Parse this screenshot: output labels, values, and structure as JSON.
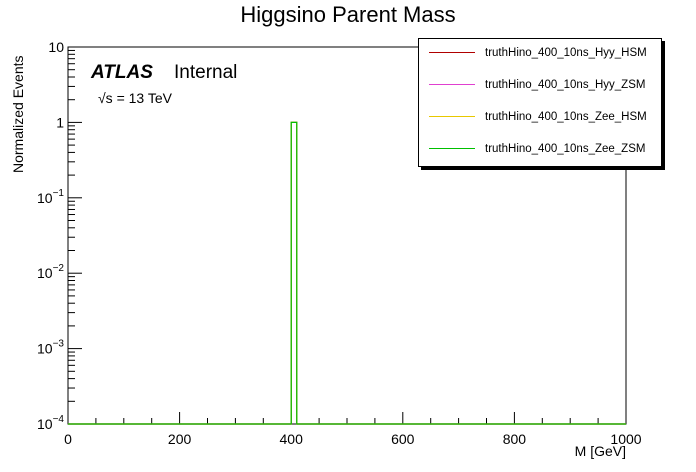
{
  "chart_data": {
    "type": "line",
    "title": "Higgsino Parent Mass",
    "xlabel": "M [GeV]",
    "ylabel": "Normalized Events",
    "xlim": [
      0,
      1000
    ],
    "ylim": [
      0.0001,
      10
    ],
    "yscale": "log",
    "x_ticks": [
      "0",
      "200",
      "400",
      "600",
      "800",
      "1000"
    ],
    "y_ticks": [
      {
        "base": "10",
        "exp": "-4"
      },
      {
        "base": "10",
        "exp": "-3"
      },
      {
        "base": "10",
        "exp": "-2"
      },
      {
        "base": "10",
        "exp": "-1"
      },
      {
        "base": "1",
        "exp": ""
      },
      {
        "base": "10",
        "exp": ""
      }
    ],
    "legend_position": "top-right",
    "annotations": {
      "atlas": "ATLAS",
      "internal": "Internal",
      "energy": "√s = 13 TeV"
    },
    "series": [
      {
        "name": "truthHino_400_10ns_Hyy_HSM",
        "color": "#b00000",
        "bins": [
          [
            400,
            410,
            1
          ]
        ]
      },
      {
        "name": "truthHino_400_10ns_Hyy_ZSM",
        "color": "#e040d0",
        "bins": [
          [
            400,
            410,
            1
          ]
        ]
      },
      {
        "name": "truthHino_400_10ns_Zee_HSM",
        "color": "#e8c800",
        "bins": [
          [
            400,
            410,
            1
          ]
        ]
      },
      {
        "name": "truthHino_400_10ns_Zee_ZSM",
        "color": "#00c000",
        "bins": [
          [
            400,
            410,
            1
          ]
        ]
      }
    ]
  }
}
